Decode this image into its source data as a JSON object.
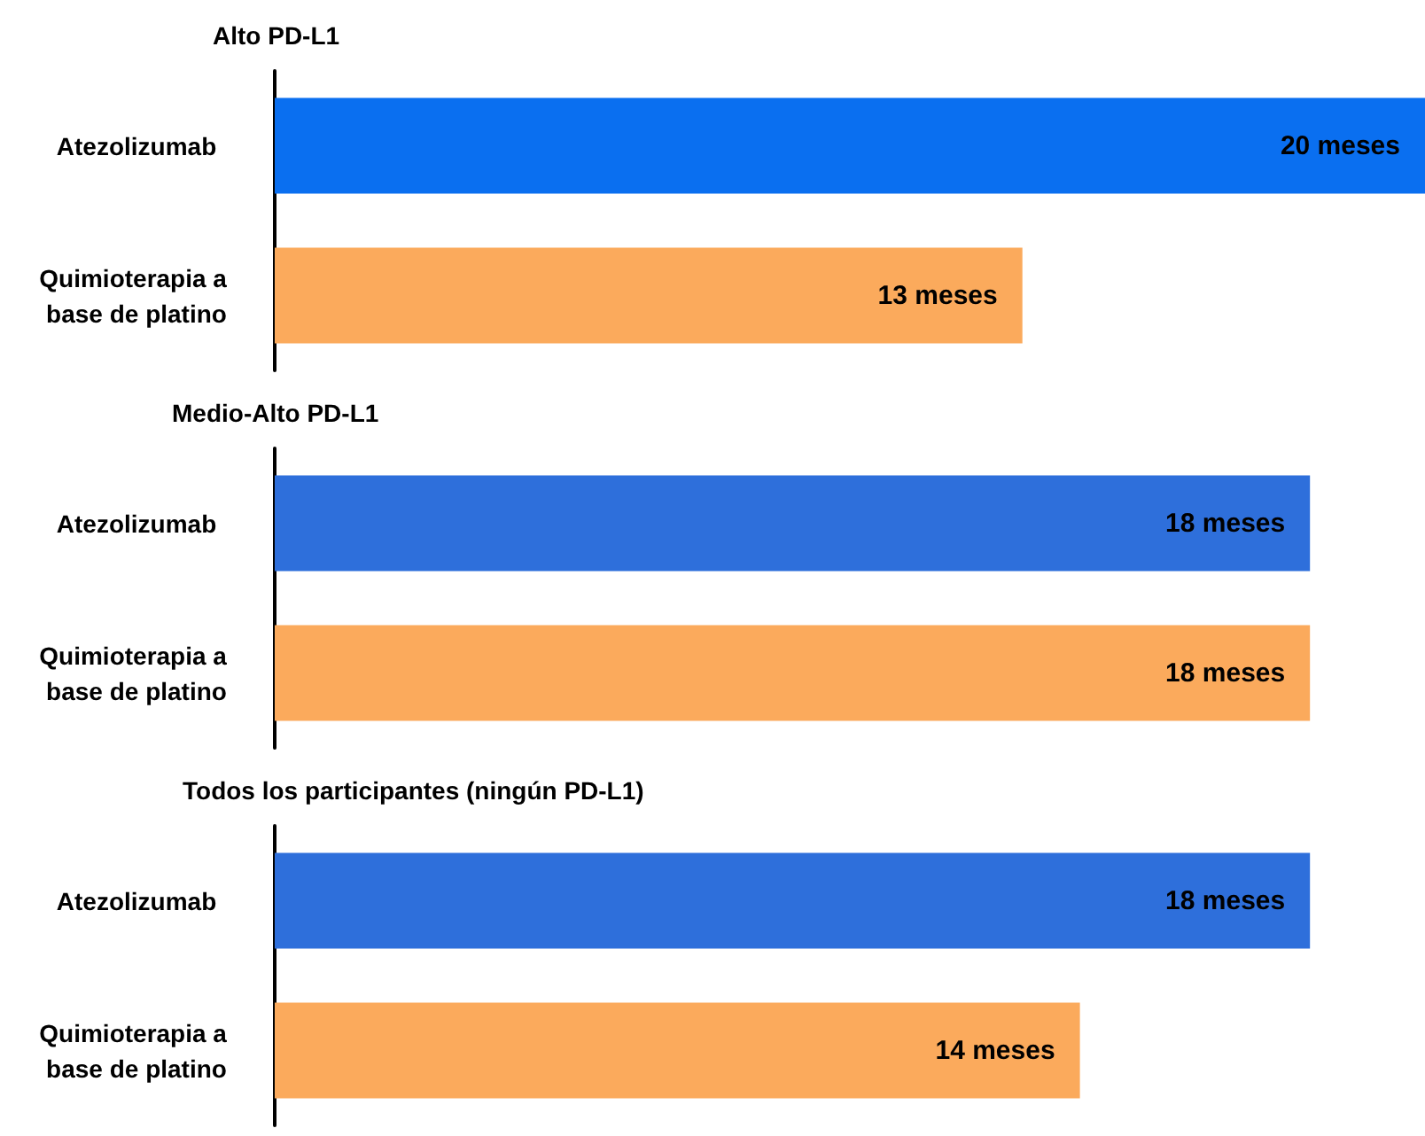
{
  "chart_data": [
    {
      "type": "bar",
      "orientation": "horizontal",
      "title": "Alto PD-L1",
      "categories": [
        "Atezolizumab",
        "Quimioterapia a base de platino"
      ],
      "values": [
        20,
        13
      ],
      "colors": [
        "#0a6ff0",
        "#fbaa5c"
      ],
      "value_labels": [
        "20 meses",
        "13 meses"
      ]
    },
    {
      "type": "bar",
      "orientation": "horizontal",
      "title": "Medio-Alto PD-L1",
      "categories": [
        "Atezolizumab",
        "Quimioterapia a base de platino"
      ],
      "values": [
        18,
        18
      ],
      "colors": [
        "#2e6fdb",
        "#fbaa5c"
      ],
      "value_labels": [
        "18 meses",
        "18 meses"
      ]
    },
    {
      "type": "bar",
      "orientation": "horizontal",
      "title": "Todos los participantes (ningún PD-L1)",
      "categories": [
        "Atezolizumab",
        "Quimioterapia a base de platino"
      ],
      "values": [
        18,
        14
      ],
      "colors": [
        "#2e6fdb",
        "#fbaa5c"
      ],
      "value_labels": [
        "18 meses",
        "14 meses"
      ]
    }
  ]
}
